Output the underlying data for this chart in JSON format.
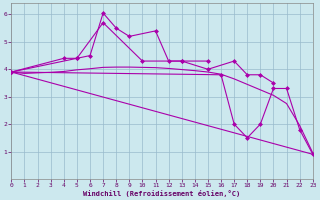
{
  "bg_color": "#cce8ee",
  "line_color": "#aa00aa",
  "grid_color": "#99bbcc",
  "x_min": 0,
  "x_max": 23,
  "y_min": 0,
  "y_max": 6.4,
  "xlabel": "Windchill (Refroidissement éolien,°C)",
  "x_ticks": [
    0,
    1,
    2,
    3,
    4,
    5,
    6,
    7,
    8,
    9,
    10,
    11,
    12,
    13,
    14,
    15,
    16,
    17,
    18,
    19,
    20,
    21,
    22,
    23
  ],
  "y_ticks": [
    1,
    2,
    3,
    4,
    5,
    6
  ],
  "series_smooth": {
    "x": [
      0,
      1,
      2,
      3,
      4,
      5,
      6,
      7,
      8,
      9,
      10,
      11,
      12,
      13,
      14,
      15,
      16,
      17,
      18,
      19,
      20,
      21,
      22,
      23
    ],
    "y": [
      3.9,
      3.85,
      3.87,
      3.89,
      3.92,
      3.98,
      4.02,
      4.07,
      4.08,
      4.08,
      4.07,
      4.06,
      4.03,
      3.99,
      3.95,
      3.9,
      3.82,
      3.65,
      3.45,
      3.25,
      3.05,
      2.75,
      1.95,
      0.95
    ]
  },
  "series_diagonal": {
    "x": [
      0,
      23
    ],
    "y": [
      3.9,
      0.9
    ]
  },
  "series_upper": {
    "x": [
      0,
      4,
      5,
      6,
      7,
      8,
      9,
      11,
      12,
      13,
      15
    ],
    "y": [
      3.9,
      4.4,
      4.4,
      4.5,
      6.05,
      5.5,
      5.2,
      5.4,
      4.3,
      4.3,
      4.3
    ]
  },
  "series_mid": {
    "x": [
      0,
      5,
      7,
      10,
      13,
      15,
      17,
      18,
      19,
      20
    ],
    "y": [
      3.9,
      4.4,
      5.7,
      4.3,
      4.3,
      4.0,
      4.3,
      3.8,
      3.8,
      3.5
    ]
  },
  "series_right": {
    "x": [
      0,
      16,
      17,
      18,
      19,
      20,
      21,
      22,
      23
    ],
    "y": [
      3.9,
      3.8,
      2.0,
      1.5,
      2.0,
      3.3,
      3.3,
      1.8,
      0.9
    ]
  }
}
